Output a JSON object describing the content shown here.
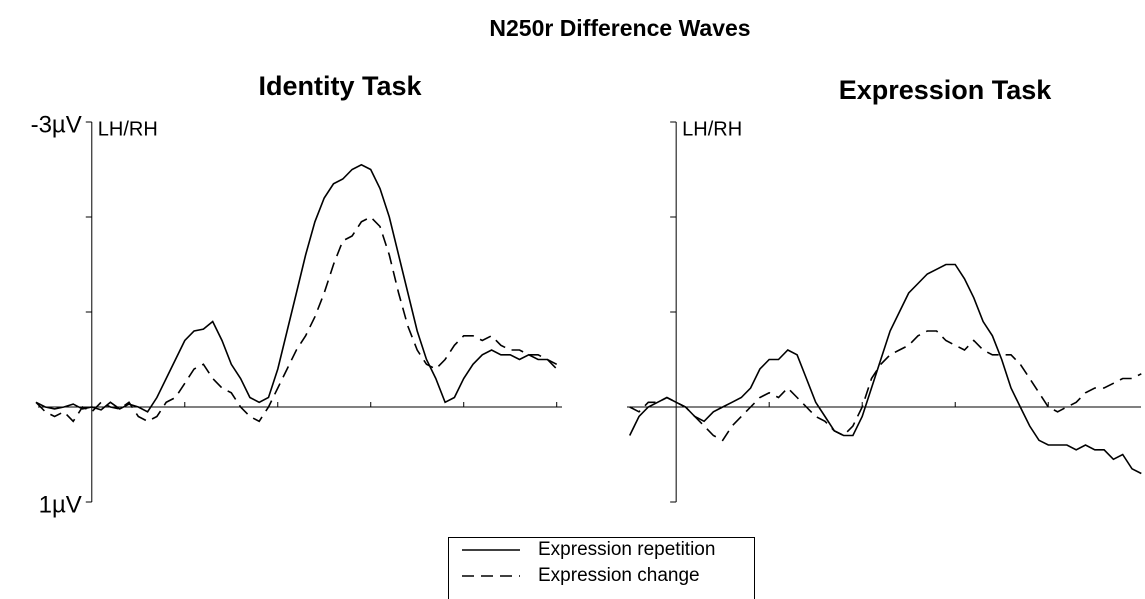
{
  "title": "N250r Difference Waves",
  "chart_data": [
    {
      "type": "line",
      "title": "Identity Task",
      "annotation": "LH/RH",
      "xlim": [
        -60,
        510
      ],
      "ylim": [
        1,
        -3
      ],
      "xticks": [
        {
          "value": 100,
          "label": null
        },
        {
          "value": 200,
          "label": null
        },
        {
          "value": 300,
          "label": null
        },
        {
          "value": 400,
          "label": null
        },
        {
          "value": 500,
          "label": null
        }
      ],
      "yticks": [
        {
          "value": -3,
          "label": "-3µV"
        },
        {
          "value": -2,
          "label": null
        },
        {
          "value": -1,
          "label": null
        },
        {
          "value": 0,
          "label": null
        },
        {
          "value": 1,
          "label": "1µV"
        }
      ],
      "x": [
        -60,
        -50,
        -40,
        -30,
        -20,
        -10,
        0,
        10,
        20,
        30,
        40,
        50,
        60,
        70,
        80,
        90,
        100,
        110,
        120,
        130,
        140,
        150,
        160,
        170,
        180,
        190,
        200,
        210,
        220,
        230,
        240,
        250,
        260,
        270,
        280,
        290,
        300,
        310,
        320,
        330,
        340,
        350,
        360,
        370,
        380,
        390,
        400,
        410,
        420,
        430,
        440,
        450,
        460,
        470,
        480,
        490,
        500
      ],
      "series": [
        {
          "name": "Expression repetition",
          "color": "#000000",
          "linestyle": "solid",
          "values": [
            -0.05,
            0.0,
            0.02,
            0.0,
            -0.03,
            0.02,
            0.0,
            0.03,
            -0.05,
            0.02,
            -0.03,
            0.0,
            0.05,
            -0.1,
            -0.3,
            -0.5,
            -0.7,
            -0.8,
            -0.82,
            -0.9,
            -0.7,
            -0.45,
            -0.3,
            -0.1,
            -0.05,
            -0.1,
            -0.4,
            -0.8,
            -1.2,
            -1.6,
            -1.95,
            -2.2,
            -2.35,
            -2.4,
            -2.5,
            -2.55,
            -2.5,
            -2.3,
            -2.0,
            -1.6,
            -1.2,
            -0.8,
            -0.5,
            -0.3,
            -0.05,
            -0.1,
            -0.3,
            -0.45,
            -0.55,
            -0.6,
            -0.55,
            -0.55,
            -0.5,
            -0.55,
            -0.5,
            -0.5,
            -0.45
          ]
        },
        {
          "name": "Expression change",
          "color": "#000000",
          "linestyle": "dashed",
          "values": [
            -0.05,
            0.05,
            0.1,
            0.05,
            0.15,
            0.0,
            0.05,
            -0.05,
            0.0,
            0.02,
            -0.05,
            0.1,
            0.15,
            0.1,
            -0.05,
            -0.1,
            -0.25,
            -0.4,
            -0.45,
            -0.3,
            -0.2,
            -0.15,
            0.0,
            0.1,
            0.15,
            0.0,
            -0.2,
            -0.4,
            -0.6,
            -0.75,
            -0.95,
            -1.2,
            -1.5,
            -1.75,
            -1.8,
            -1.95,
            -2.0,
            -1.9,
            -1.6,
            -1.2,
            -0.85,
            -0.6,
            -0.45,
            -0.4,
            -0.5,
            -0.65,
            -0.75,
            -0.75,
            -0.7,
            -0.75,
            -0.65,
            -0.6,
            -0.6,
            -0.55,
            -0.55,
            -0.5,
            -0.4
          ]
        }
      ]
    },
    {
      "type": "line",
      "title": "Expression Task",
      "annotation": "LH/RH",
      "xlim": [
        -55,
        504
      ],
      "ylim": [
        1,
        -3
      ],
      "xticks": [
        {
          "value": 100,
          "label": null
        },
        {
          "value": 200,
          "label": null
        },
        {
          "value": 300,
          "label": null
        },
        {
          "value": 400,
          "label": null
        }
      ],
      "yticks": [
        {
          "value": -3,
          "label": null
        },
        {
          "value": -2,
          "label": null
        },
        {
          "value": -1,
          "label": null
        },
        {
          "value": 0,
          "label": null
        },
        {
          "value": 1,
          "label": null
        }
      ],
      "x": [
        -50,
        -40,
        -30,
        -20,
        -10,
        0,
        10,
        20,
        30,
        40,
        50,
        60,
        70,
        80,
        90,
        100,
        110,
        120,
        130,
        140,
        150,
        160,
        170,
        180,
        190,
        200,
        210,
        220,
        230,
        240,
        250,
        260,
        270,
        280,
        290,
        300,
        310,
        320,
        330,
        340,
        350,
        360,
        370,
        380,
        390,
        400,
        410,
        420,
        430,
        440,
        450,
        460,
        470,
        480,
        490,
        500
      ],
      "series": [
        {
          "color": "#000000",
          "linestyle": "solid",
          "values": [
            0.3,
            0.1,
            0.0,
            -0.05,
            -0.1,
            -0.05,
            0.0,
            0.1,
            0.15,
            0.05,
            0.0,
            -0.05,
            -0.1,
            -0.2,
            -0.4,
            -0.5,
            -0.5,
            -0.6,
            -0.55,
            -0.3,
            -0.05,
            0.1,
            0.25,
            0.3,
            0.3,
            0.1,
            -0.2,
            -0.5,
            -0.8,
            -1.0,
            -1.2,
            -1.3,
            -1.4,
            -1.45,
            -1.5,
            -1.5,
            -1.35,
            -1.15,
            -0.9,
            -0.75,
            -0.5,
            -0.2,
            0.0,
            0.2,
            0.35,
            0.4,
            0.4,
            0.4,
            0.45,
            0.4,
            0.45,
            0.45,
            0.55,
            0.5,
            0.65,
            0.7
          ]
        },
        {
          "color": "#000000",
          "linestyle": "dashed",
          "values": [
            0.0,
            0.05,
            -0.05,
            -0.05,
            -0.1,
            -0.05,
            0.0,
            0.1,
            0.2,
            0.3,
            0.35,
            0.2,
            0.1,
            0.0,
            -0.1,
            -0.15,
            -0.1,
            -0.2,
            -0.1,
            0.0,
            0.1,
            0.15,
            0.25,
            0.3,
            0.2,
            0.0,
            -0.3,
            -0.45,
            -0.55,
            -0.6,
            -0.65,
            -0.75,
            -0.8,
            -0.8,
            -0.7,
            -0.65,
            -0.6,
            -0.7,
            -0.6,
            -0.55,
            -0.55,
            -0.55,
            -0.45,
            -0.3,
            -0.15,
            0.0,
            0.05,
            0.0,
            -0.05,
            -0.15,
            -0.2,
            -0.2,
            -0.25,
            -0.3,
            -0.3,
            -0.35
          ]
        }
      ]
    }
  ]
}
